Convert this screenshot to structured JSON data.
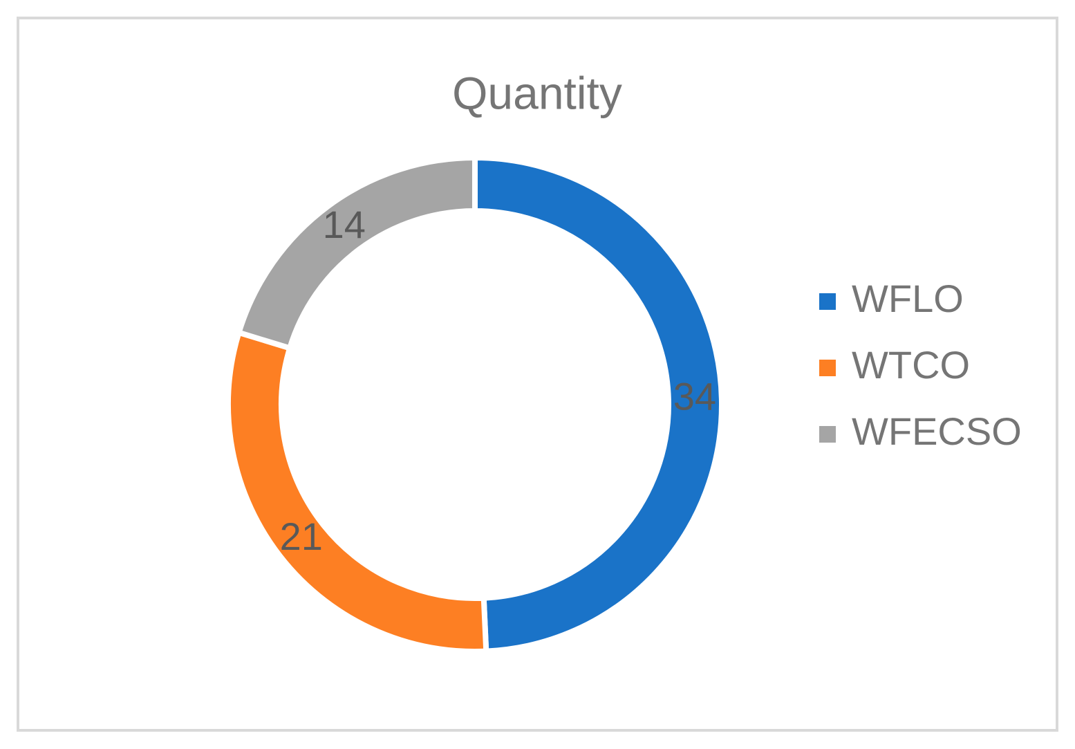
{
  "chart_data": {
    "type": "donut",
    "title": "Quantity",
    "categories": [
      "WFLO",
      "WTCO",
      "WFECSO"
    ],
    "values": [
      34,
      21,
      14
    ],
    "colors": [
      "#1a73c8",
      "#fd7f23",
      "#a5a5a5"
    ],
    "legend": "right"
  }
}
